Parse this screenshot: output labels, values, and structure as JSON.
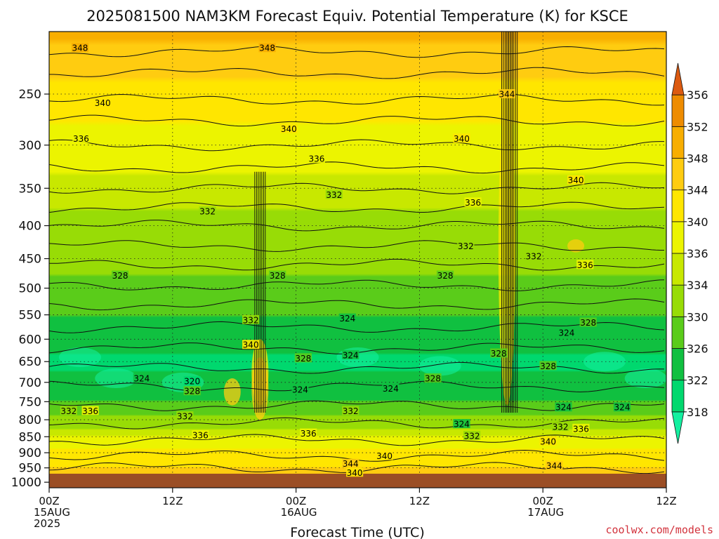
{
  "chart_data": {
    "type": "heatmap",
    "title": "2025081500 NAM3KM Forecast Equiv. Potential Temperature (K) for KSCE",
    "xlabel": "Forecast Time (UTC)",
    "ylabel": "",
    "y_log_scale": true,
    "y_reversed": true,
    "ylim": [
      1020,
      200
    ],
    "x_ticks": [
      {
        "t": 0,
        "lines": [
          "00Z",
          "15AUG",
          "2025"
        ]
      },
      {
        "t": 12,
        "lines": [
          "12Z"
        ]
      },
      {
        "t": 24,
        "lines": [
          "00Z",
          "16AUG"
        ]
      },
      {
        "t": 36,
        "lines": [
          "12Z"
        ]
      },
      {
        "t": 48,
        "lines": [
          "00Z",
          "17AUG"
        ]
      },
      {
        "t": 60,
        "lines": [
          "12Z"
        ]
      }
    ],
    "xlim": [
      0,
      60
    ],
    "y_ticks": [
      250,
      300,
      350,
      400,
      450,
      500,
      550,
      600,
      650,
      700,
      750,
      800,
      850,
      900,
      950,
      1000
    ],
    "grid": true,
    "ground_below_hpa": 970,
    "colorbar": {
      "levels": [
        318,
        322,
        326,
        330,
        334,
        336,
        340,
        344,
        348,
        352,
        356
      ],
      "band_colors": [
        "#14f0a0",
        "#00d86e",
        "#10c040",
        "#5acc1a",
        "#98dc06",
        "#c8e800",
        "#ecf400",
        "#ffe600",
        "#ffcc10",
        "#f8ae00",
        "#ee8c00",
        "#dc5a10"
      ]
    },
    "profile_hpa": [
      200,
      250,
      300,
      350,
      400,
      450,
      500,
      550,
      600,
      650,
      700,
      750,
      800,
      850,
      900,
      950,
      970
    ],
    "profile_theta_e": [
      349,
      342,
      338,
      335,
      333,
      331,
      329,
      326,
      324,
      321,
      323,
      326,
      331,
      336,
      341,
      344,
      345
    ],
    "contour_labels": [
      {
        "t": 3,
        "p": 212,
        "text": "348"
      },
      {
        "t": 21.2,
        "p": 212,
        "text": "348"
      },
      {
        "t": 5.2,
        "p": 258,
        "text": "340"
      },
      {
        "t": 23.3,
        "p": 283,
        "text": "340"
      },
      {
        "t": 3.1,
        "p": 293,
        "text": "336"
      },
      {
        "t": 44.5,
        "p": 250,
        "text": "344"
      },
      {
        "t": 40.1,
        "p": 293,
        "text": "340"
      },
      {
        "t": 51.2,
        "p": 340,
        "text": "340"
      },
      {
        "t": 26,
        "p": 315,
        "text": "336"
      },
      {
        "t": 27.7,
        "p": 358,
        "text": "332"
      },
      {
        "t": 41.2,
        "p": 368,
        "text": "336"
      },
      {
        "t": 15.4,
        "p": 380,
        "text": "332"
      },
      {
        "t": 40.5,
        "p": 430,
        "text": "332"
      },
      {
        "t": 47.1,
        "p": 446,
        "text": "332"
      },
      {
        "t": 52.1,
        "p": 460,
        "text": "336"
      },
      {
        "t": 6.9,
        "p": 478,
        "text": "328"
      },
      {
        "t": 22.2,
        "p": 478,
        "text": "328"
      },
      {
        "t": 38.5,
        "p": 478,
        "text": "328"
      },
      {
        "t": 19.6,
        "p": 560,
        "text": "332"
      },
      {
        "t": 29,
        "p": 557,
        "text": "324"
      },
      {
        "t": 52.4,
        "p": 565,
        "text": "328"
      },
      {
        "t": 50.3,
        "p": 586,
        "text": "324"
      },
      {
        "t": 19.6,
        "p": 612,
        "text": "340"
      },
      {
        "t": 43.7,
        "p": 631,
        "text": "328"
      },
      {
        "t": 24.7,
        "p": 642,
        "text": "328"
      },
      {
        "t": 29.3,
        "p": 635,
        "text": "324"
      },
      {
        "t": 48.5,
        "p": 660,
        "text": "328"
      },
      {
        "t": 9,
        "p": 690,
        "text": "324"
      },
      {
        "t": 37.3,
        "p": 690,
        "text": "328"
      },
      {
        "t": 13.9,
        "p": 697,
        "text": "320"
      },
      {
        "t": 13.9,
        "p": 722,
        "text": "328"
      },
      {
        "t": 24.4,
        "p": 718,
        "text": "324"
      },
      {
        "t": 33.2,
        "p": 715,
        "text": "324"
      },
      {
        "t": 1.9,
        "p": 775,
        "text": "332"
      },
      {
        "t": 4,
        "p": 775,
        "text": "336"
      },
      {
        "t": 13.2,
        "p": 790,
        "text": "332"
      },
      {
        "t": 29.3,
        "p": 775,
        "text": "332"
      },
      {
        "t": 50,
        "p": 765,
        "text": "324"
      },
      {
        "t": 55.7,
        "p": 765,
        "text": "324"
      },
      {
        "t": 40.1,
        "p": 812,
        "text": "324"
      },
      {
        "t": 49.7,
        "p": 820,
        "text": "332"
      },
      {
        "t": 51.7,
        "p": 826,
        "text": "336"
      },
      {
        "t": 14.7,
        "p": 845,
        "text": "336"
      },
      {
        "t": 25.2,
        "p": 840,
        "text": "336"
      },
      {
        "t": 41.1,
        "p": 847,
        "text": "332"
      },
      {
        "t": 48.5,
        "p": 864,
        "text": "340"
      },
      {
        "t": 32.6,
        "p": 910,
        "text": "340"
      },
      {
        "t": 29.3,
        "p": 936,
        "text": "344"
      },
      {
        "t": 29.7,
        "p": 966,
        "text": "340"
      },
      {
        "t": 49.1,
        "p": 943,
        "text": "344"
      }
    ]
  },
  "watermark": "coolwx.com/models"
}
